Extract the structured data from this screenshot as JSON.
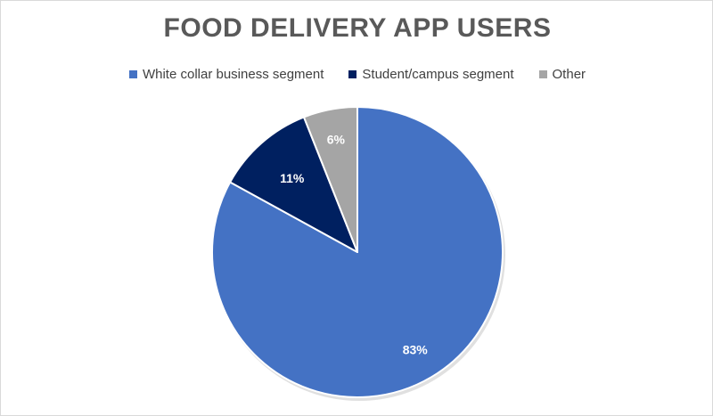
{
  "chart_data": {
    "type": "pie",
    "title": "FOOD DELIVERY APP USERS",
    "legend_position": "top",
    "slices": [
      {
        "name": "White collar business segment",
        "value": 83,
        "label": "83%",
        "color": "#4472c4"
      },
      {
        "name": "Student/campus segment",
        "value": 11,
        "label": "11%",
        "color": "#002060"
      },
      {
        "name": "Other",
        "value": 6,
        "label": "6%",
        "color": "#a5a5a5"
      }
    ]
  }
}
